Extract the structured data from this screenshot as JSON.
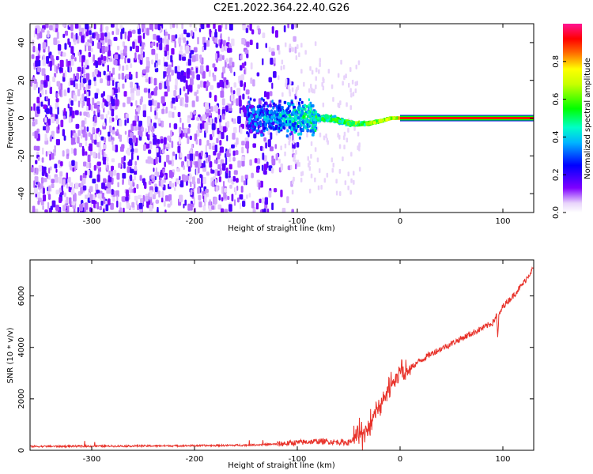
{
  "title": "C2E1.2022.364.22.40.G26",
  "chart_data": [
    {
      "type": "heatmap",
      "xlabel": "Height of straight line (km)",
      "ylabel": "Frequency (Hz)",
      "xlim": [
        -360,
        130
      ],
      "ylim": [
        -50,
        50
      ],
      "xticks": [
        -300,
        -200,
        -100,
        0,
        100
      ],
      "yticks": [
        -40,
        -20,
        0,
        20,
        40
      ],
      "colorbar": {
        "label": "Normalized spectral amplitude",
        "range": [
          0.0,
          1.0
        ],
        "ticks": [
          0.0,
          0.2,
          0.4,
          0.6,
          0.8
        ],
        "colormap": "rainbow (white-purple-blue-cyan-green-yellow-red-magenta)"
      },
      "features": {
        "noise_region_km": [
          -360,
          -120
        ],
        "carrier_onset_km": -150,
        "carrier_frequency_hz": 0,
        "carrier_scatter_hz_at_minus100km": 10,
        "steady_carrier_from_km": 0,
        "steady_carrier_amplitude": 0.9,
        "dip_track_hz_at_minus50km": -3
      },
      "grid": false
    },
    {
      "type": "line",
      "xlabel": "Height of straight line (km)",
      "ylabel": "SNR (10 * v/v)",
      "xlim": [
        -360,
        130
      ],
      "ylim": [
        0,
        7400
      ],
      "xticks": [
        -300,
        -200,
        -100,
        0,
        100
      ],
      "yticks": [
        0,
        2000,
        4000,
        6000
      ],
      "color": "#e8322a",
      "grid": false,
      "series": [
        {
          "x": [
            -360,
            -300,
            -250,
            -200,
            -150,
            -120,
            -100,
            -80,
            -60,
            -50,
            -45,
            -40,
            -35,
            -30,
            -25,
            -20,
            -15,
            -10,
            -5,
            0,
            10,
            20,
            30,
            40,
            50,
            60,
            70,
            80,
            90,
            94,
            95,
            96,
            100,
            110,
            120,
            130
          ],
          "y": [
            150,
            160,
            170,
            180,
            200,
            240,
            300,
            350,
            320,
            300,
            450,
            500,
            700,
            1000,
            1400,
            1700,
            2100,
            2400,
            2700,
            3000,
            3200,
            3500,
            3750,
            3950,
            4150,
            4350,
            4550,
            4750,
            4950,
            5250,
            4300,
            5200,
            5600,
            6000,
            6500,
            7100
          ]
        }
      ]
    }
  ]
}
